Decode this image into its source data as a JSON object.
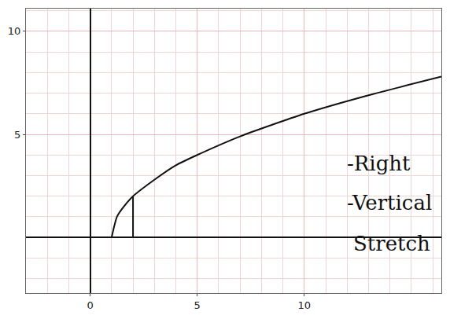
{
  "chart_data": {
    "type": "line",
    "series": [
      {
        "color": "#111111",
        "x": [
          1,
          1.25,
          1.5,
          2,
          3,
          4,
          5,
          7,
          10,
          13,
          16.4
        ],
        "values": [
          0,
          1.0,
          1.4,
          2,
          2.8,
          3.5,
          4,
          4.9,
          6,
          6.9,
          7.8
        ]
      },
      {
        "color": "#111111",
        "x": [
          2,
          2
        ],
        "values": [
          0,
          2
        ]
      }
    ],
    "annotations": [
      "-Right",
      "-Vertical",
      "Stretch"
    ],
    "xlim": [
      -3,
      16.4
    ],
    "ylim": [
      -2.7,
      11.1
    ],
    "xticks": [
      0,
      5,
      10
    ],
    "yticks": [
      5,
      10
    ],
    "grid": true
  }
}
